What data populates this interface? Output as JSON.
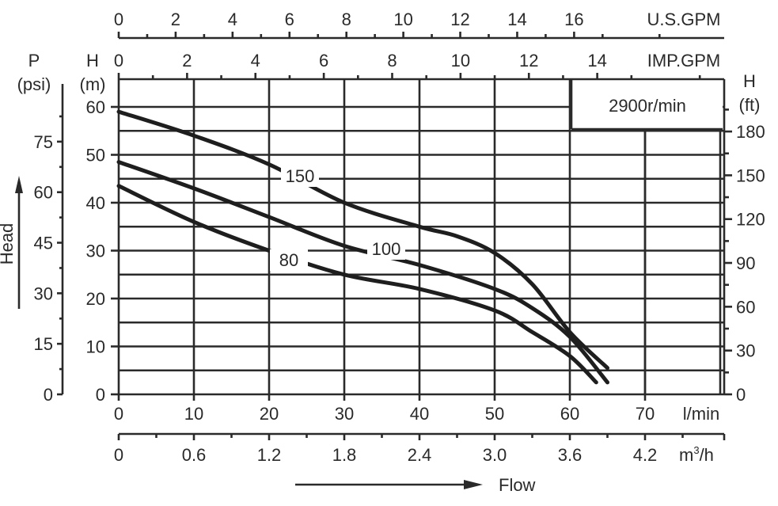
{
  "chart_data": {
    "type": "line",
    "speed_label": "2900r/min",
    "x": {
      "label": "l/min",
      "ticks": [
        0,
        10,
        20,
        30,
        40,
        50,
        60,
        70
      ],
      "range": [
        0,
        80
      ]
    },
    "x_m3h": {
      "label": "m³/h",
      "unit_base": "m",
      "unit_sup": "3",
      "unit_tail": "/h",
      "ticks": [
        "0",
        "0.6",
        "1.2",
        "1.8",
        "2.4",
        "3.0",
        "3.6",
        "4.2"
      ]
    },
    "x_usgpm": {
      "label": "U.S.GPM",
      "ticks": [
        "0",
        "2",
        "4",
        "6",
        "8",
        "10",
        "12",
        "14",
        "16"
      ]
    },
    "x_impgpm": {
      "label": "IMP.GPM",
      "ticks": [
        "0",
        "2",
        "4",
        "6",
        "8",
        "10",
        "12",
        "14"
      ]
    },
    "y_m": {
      "label_top": "H",
      "label_bottom": "(m)",
      "ticks": [
        0,
        10,
        20,
        30,
        40,
        50,
        60
      ],
      "range": [
        0,
        65
      ]
    },
    "y_psi": {
      "label_top": "P",
      "label_bottom": "(psi)",
      "ticks": [
        "0",
        "15",
        "30",
        "45",
        "60",
        "75"
      ]
    },
    "y_ft": {
      "label_top": "H",
      "label_bottom": "(ft)",
      "ticks": [
        "0",
        "30",
        "60",
        "90",
        "120",
        "150",
        "180"
      ]
    },
    "y_title": "Head",
    "x_title": "Flow",
    "series": [
      {
        "name": "150",
        "points": [
          [
            0,
            59
          ],
          [
            10,
            54
          ],
          [
            20,
            48
          ],
          [
            30,
            40
          ],
          [
            40,
            35
          ],
          [
            45,
            33
          ],
          [
            50,
            29.5
          ],
          [
            55,
            23
          ],
          [
            60,
            13
          ],
          [
            65,
            5.5
          ]
        ]
      },
      {
        "name": "100",
        "points": [
          [
            0,
            48.5
          ],
          [
            10,
            43
          ],
          [
            20,
            37
          ],
          [
            30,
            31
          ],
          [
            40,
            27
          ],
          [
            50,
            22
          ],
          [
            55,
            18
          ],
          [
            60,
            12
          ],
          [
            65,
            2.5
          ]
        ]
      },
      {
        "name": "80",
        "points": [
          [
            0,
            43.5
          ],
          [
            10,
            36
          ],
          [
            20,
            30
          ],
          [
            30,
            25
          ],
          [
            40,
            22
          ],
          [
            50,
            17.5
          ],
          [
            55,
            13
          ],
          [
            60,
            8
          ],
          [
            63.5,
            2.5
          ]
        ]
      }
    ]
  }
}
